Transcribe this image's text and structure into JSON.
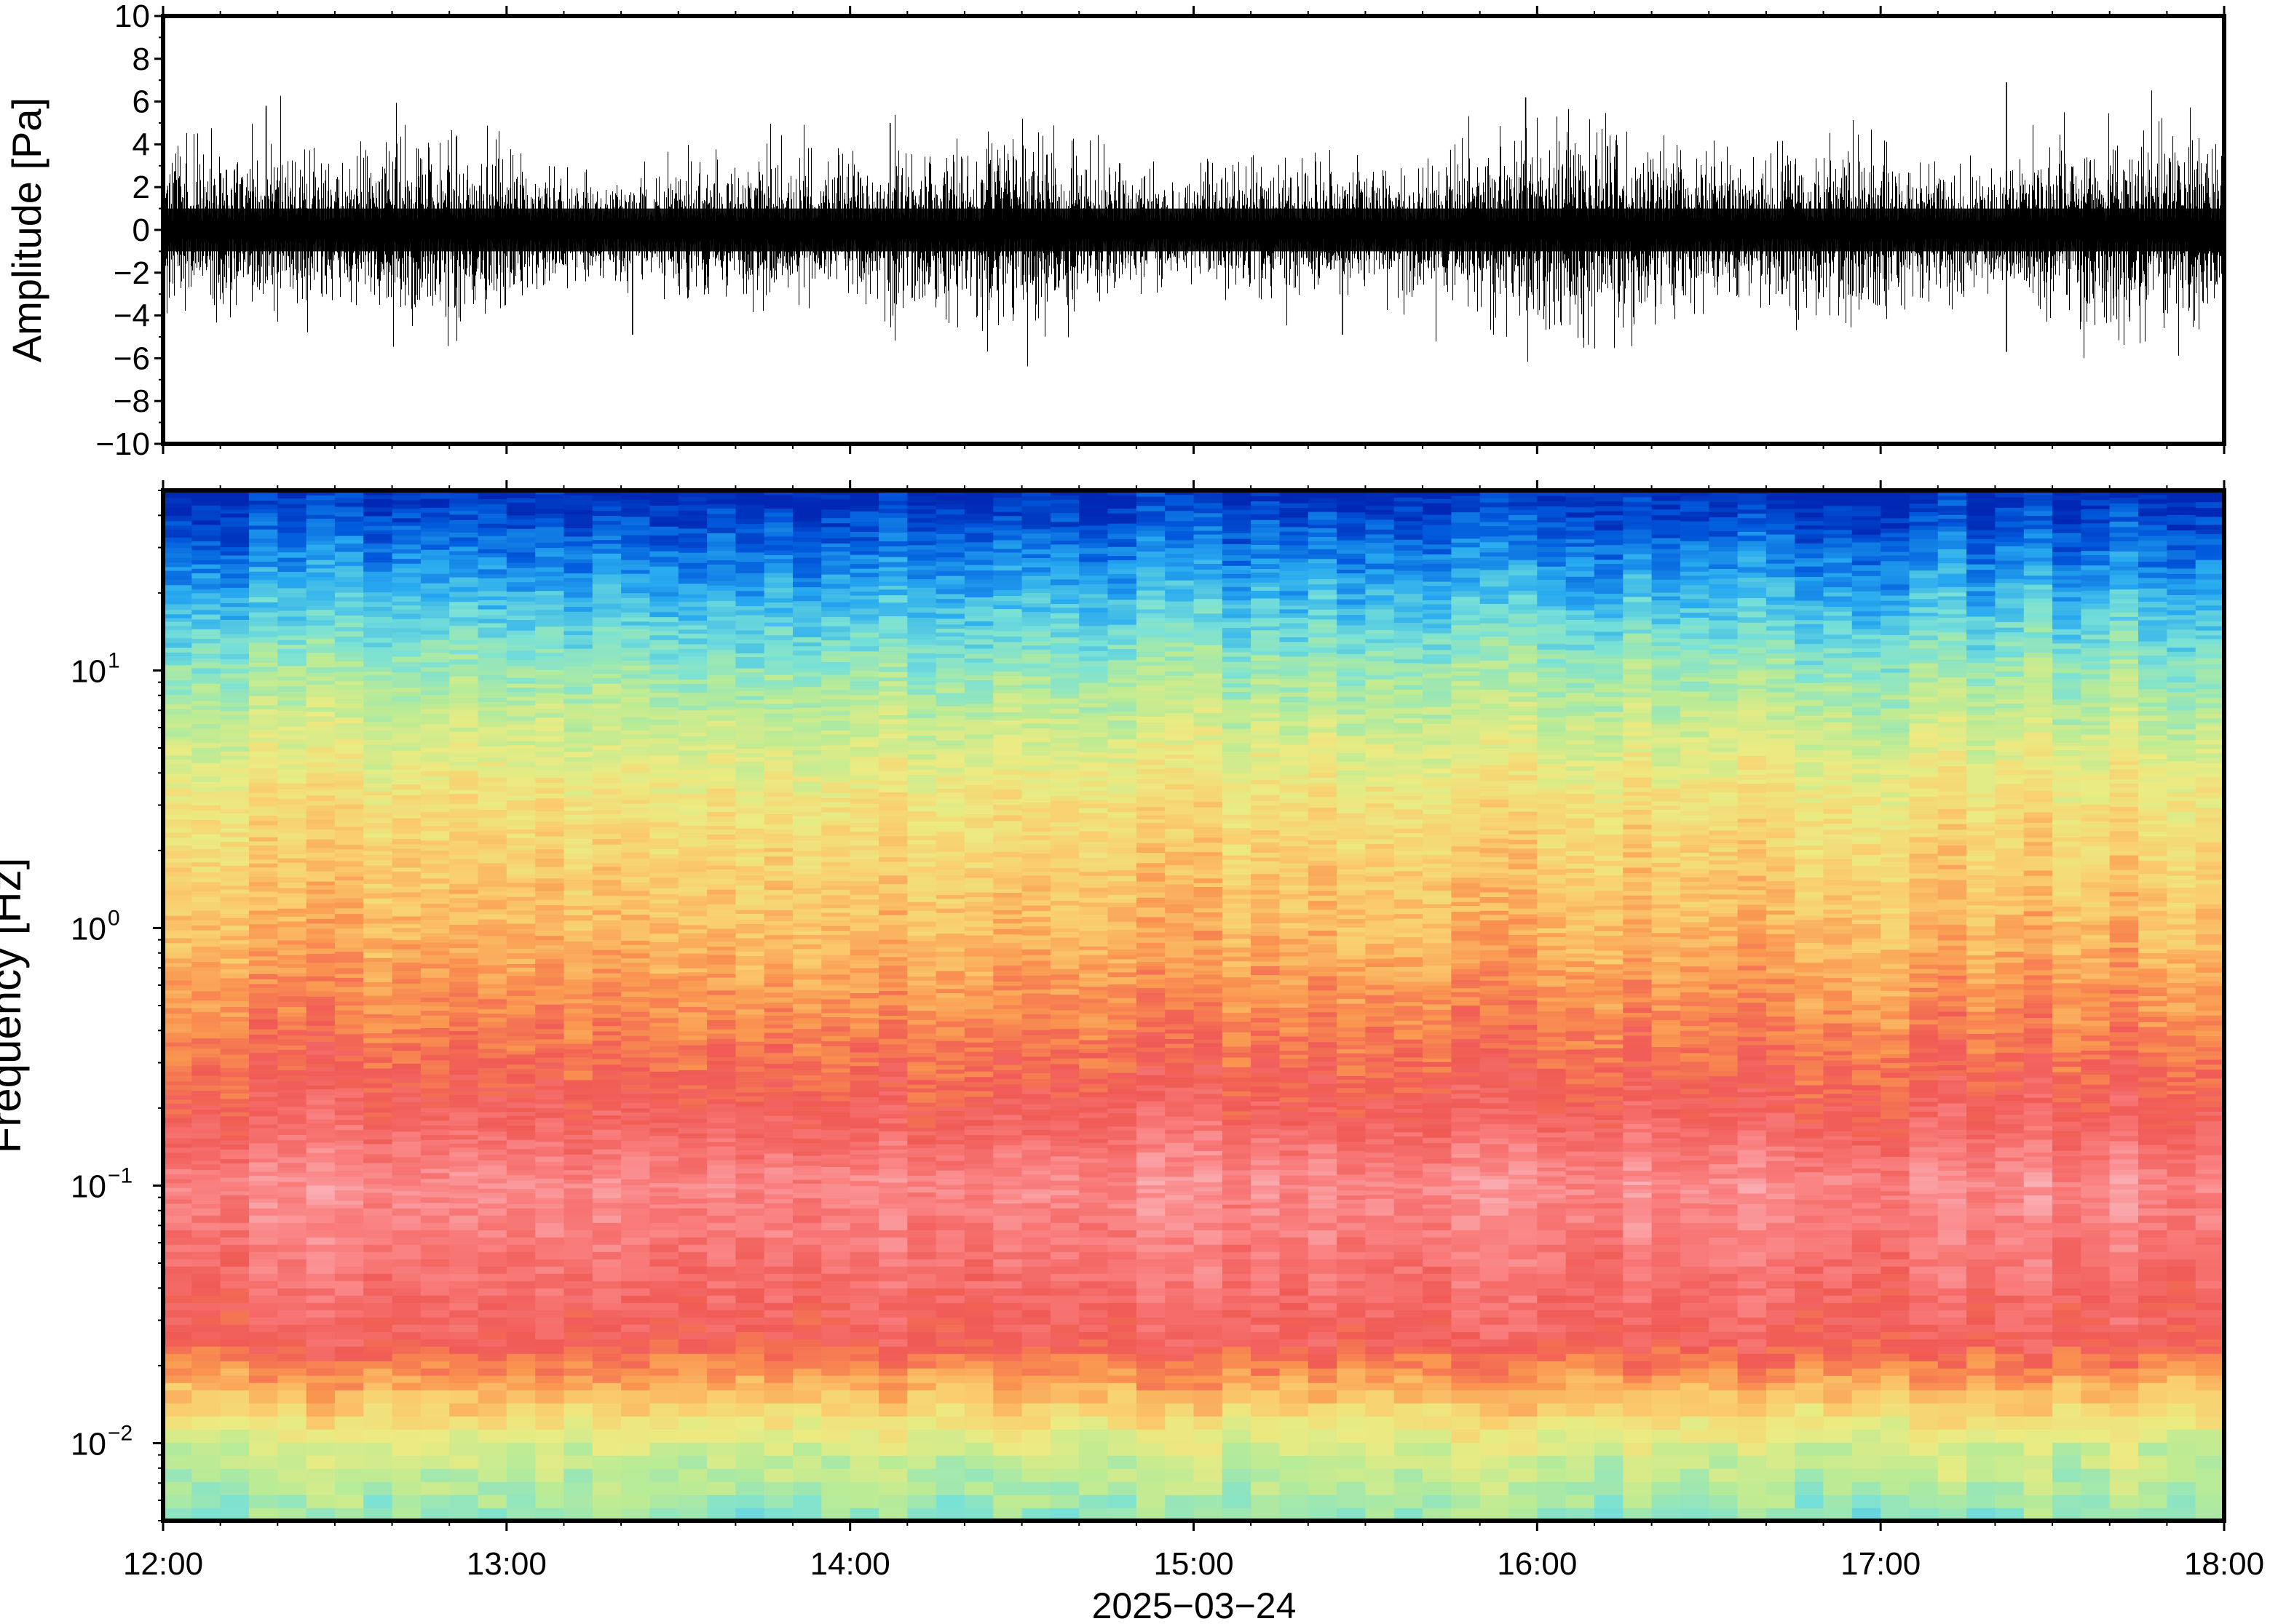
{
  "chart_data": [
    {
      "type": "line",
      "ylabel": "Amplitude [Pa]",
      "ylim": [
        -10,
        10
      ],
      "yticks": [
        10,
        8,
        6,
        4,
        2,
        0,
        -2,
        -4,
        -6,
        -8,
        -10
      ],
      "ytick_labels": [
        "10",
        "8",
        "6",
        "4",
        "2",
        "0",
        "−2",
        "−4",
        "−6",
        "−8",
        "−10"
      ],
      "x_range": [
        "12:00",
        "18:00"
      ],
      "series": [
        {
          "values_summary": "dense pressure waveform around 0 Pa, typical band about ±2 to ±3 Pa",
          "peaks": [
            {
              "time": "12:18",
              "value": 5.8
            },
            {
              "time": "13:22",
              "value": -4.9
            },
            {
              "time": "14:07",
              "value": 5.0
            },
            {
              "time": "15:26",
              "value": -4.9
            },
            {
              "time": "15:58",
              "value": 6.2
            },
            {
              "time": "17:22",
              "value": 6.9
            },
            {
              "time": "17:22",
              "value": -5.7
            }
          ]
        }
      ],
      "grid": false
    },
    {
      "type": "heatmap",
      "ylabel": "Frequency [Hz]",
      "yscale": "log",
      "ylim": [
        0.005,
        50
      ],
      "yticks": [
        {
          "base": "10",
          "exp": "1",
          "value": 10
        },
        {
          "base": "10",
          "exp": "0",
          "value": 1
        },
        {
          "base": "10",
          "exp": "−1",
          "value": 0.1
        },
        {
          "base": "10",
          "exp": "−2",
          "value": 0.01
        }
      ],
      "colormap": "spectral (blue high frequency, yellow mid, red/pink low, green-cyan lowest)",
      "grid": false
    }
  ],
  "xaxis": {
    "tick_labels": [
      "12:00",
      "13:00",
      "14:00",
      "15:00",
      "16:00",
      "17:00",
      "18:00"
    ],
    "date_label": "2025−03−24"
  }
}
